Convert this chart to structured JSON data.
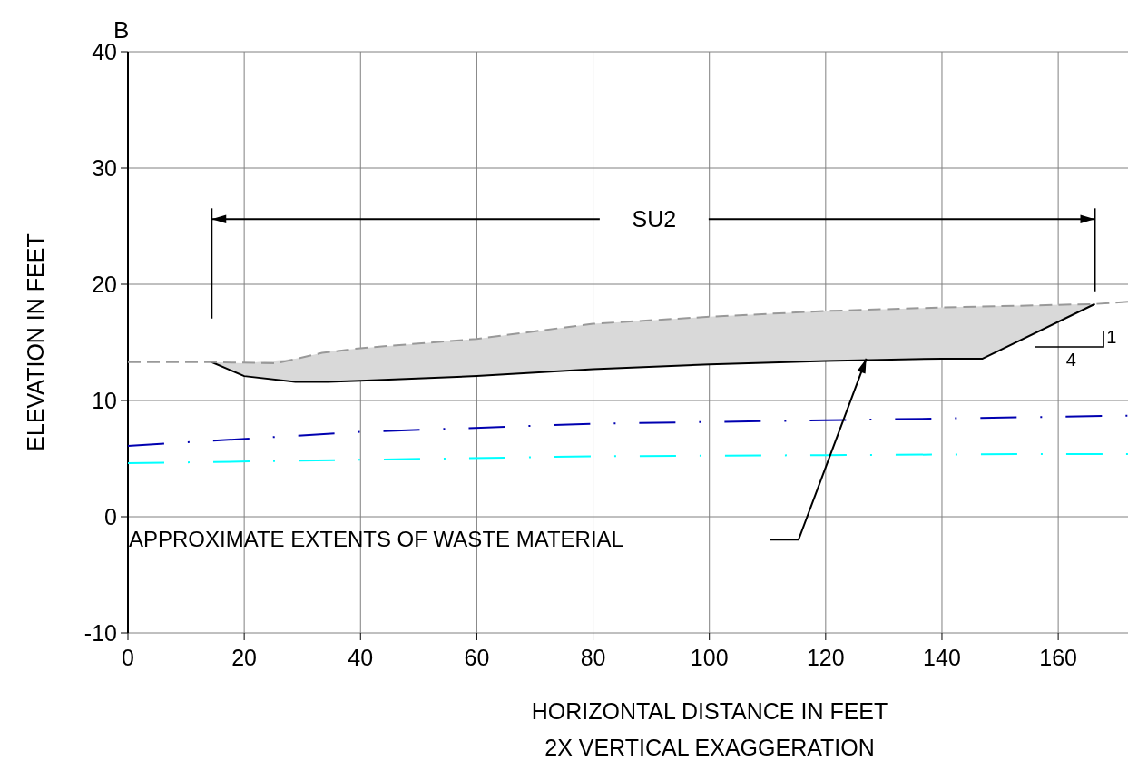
{
  "chart_data": {
    "type": "line",
    "title": "B",
    "xlabel": "HORIZONTAL DISTANCE IN FEET",
    "ylabel": "ELEVATION IN FEET",
    "xlim": [
      0,
      172
    ],
    "xticks": [
      0,
      20,
      40,
      60,
      80,
      100,
      120,
      140,
      160
    ],
    "ylim": [
      -10,
      40
    ],
    "yticks": [
      -10,
      0,
      10,
      20,
      30,
      40
    ],
    "grid": true,
    "series": [
      {
        "color": "#000000",
        "line_style": "solid",
        "x": [
          14.4,
          20,
          28.8,
          34.4,
          40,
          60,
          80,
          100,
          120,
          140,
          147,
          166.3
        ],
        "values": [
          13.3,
          12.1,
          11.6,
          11.6,
          11.7,
          12.1,
          12.7,
          13.1,
          13.4,
          13.6,
          13.6,
          18.3
        ],
        "lower": [
          13.3,
          12.1,
          11.6,
          11.6,
          11.7,
          12.1,
          12.7,
          13.1,
          13.4,
          13.6,
          13.6,
          18.3
        ],
        "upper": [
          13.3,
          13.2,
          13.6,
          14.2,
          14.5,
          15.3,
          16.6,
          17.2,
          17.7,
          18.0,
          18.1,
          18.3
        ]
      },
      {
        "color": "#999999",
        "line_style": "dashed",
        "x": [
          0,
          14.4,
          25.6,
          33.4,
          40,
          60,
          80,
          100,
          120,
          140,
          166.3,
          172
        ],
        "values": [
          13.3,
          13.3,
          13.2,
          14.1,
          14.5,
          15.3,
          16.6,
          17.2,
          17.7,
          18.0,
          18.3,
          18.5
        ]
      },
      {
        "color": "#0000b0",
        "line_style": "dashdot",
        "x": [
          0,
          40,
          80,
          120,
          160,
          172
        ],
        "values": [
          6.1,
          7.3,
          8.0,
          8.3,
          8.6,
          8.7
        ]
      },
      {
        "color": "#00ffff",
        "line_style": "dashdot",
        "x": [
          0,
          40,
          80,
          120,
          160,
          172
        ],
        "values": [
          4.6,
          4.9,
          5.2,
          5.3,
          5.4,
          5.4
        ]
      }
    ],
    "annotations": [
      "SU2",
      "1",
      "4",
      "APPROXIMATE EXTENTS OF WASTE MATERIAL",
      "2X VERTICAL EXAGGERATION"
    ]
  }
}
